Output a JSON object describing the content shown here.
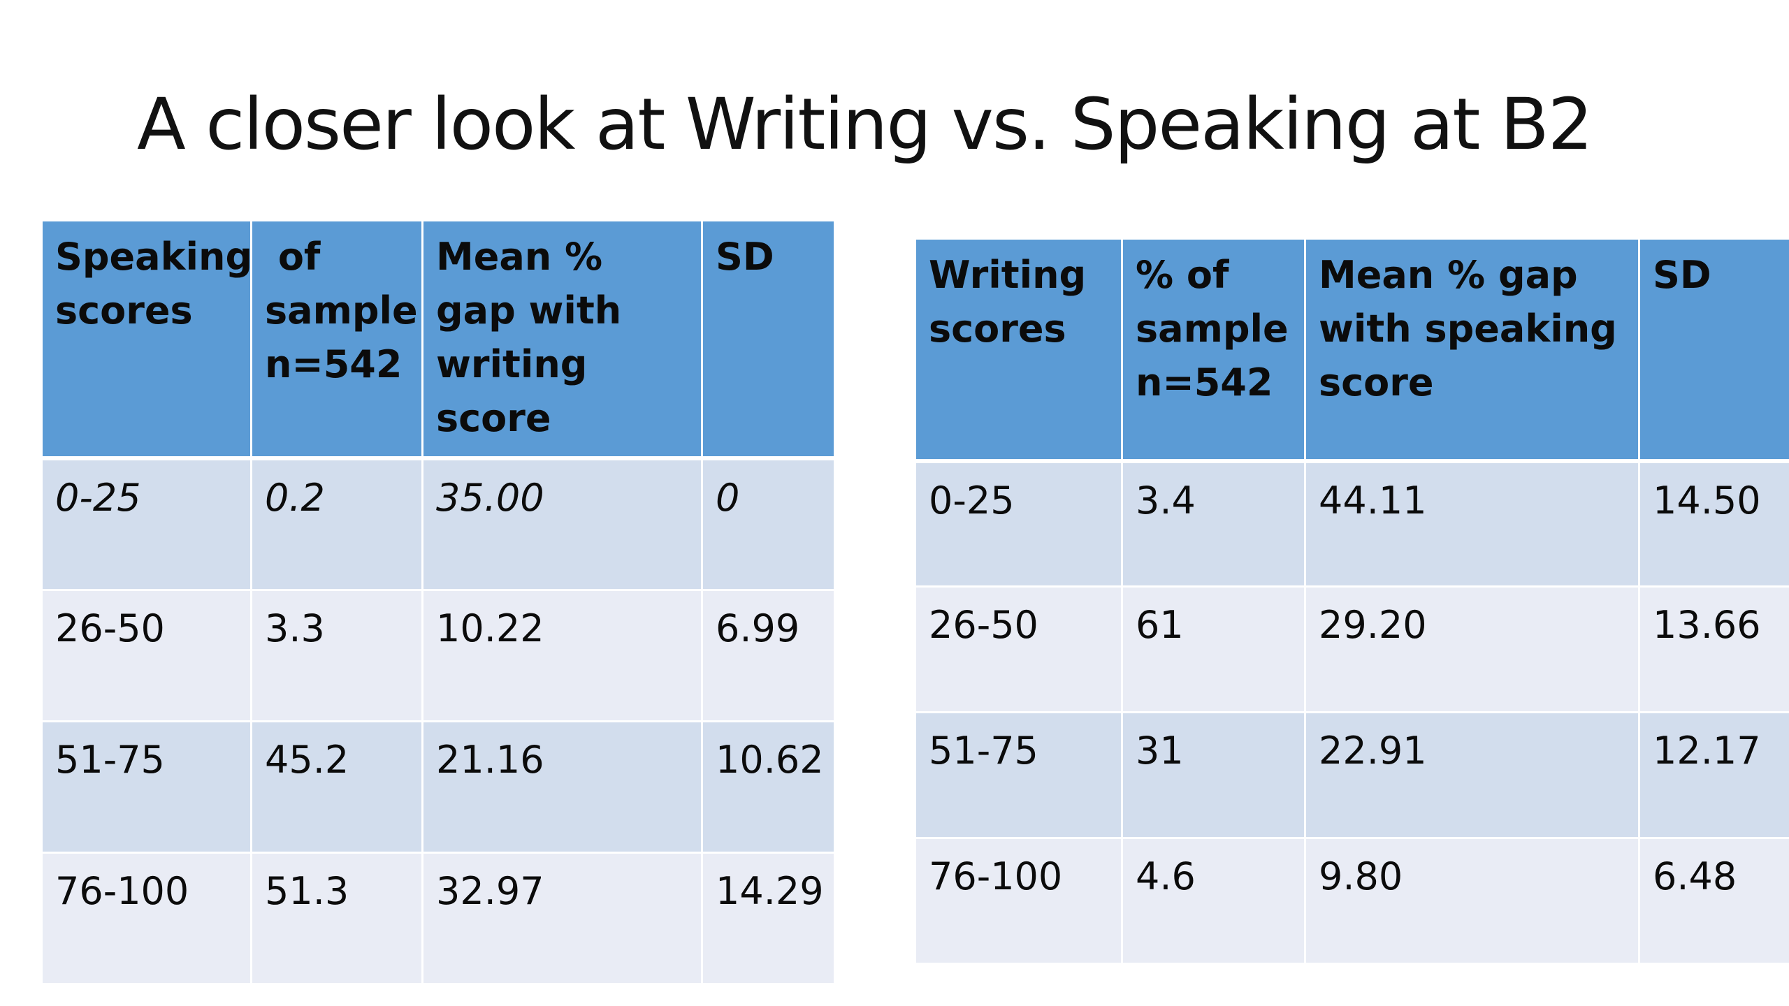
{
  "slide": {
    "title": "A closer look at Writing vs. Speaking at B2"
  },
  "speaking_table": {
    "headers": [
      "Speaking scores",
      " of sample n=542",
      "Mean % gap with writing score",
      "SD"
    ],
    "rows": [
      [
        "0-25",
        "0.2",
        "35.00",
        "0"
      ],
      [
        "26-50",
        "3.3",
        "10.22",
        "6.99"
      ],
      [
        "51-75",
        "45.2",
        "21.16",
        "10.62"
      ],
      [
        "76-100",
        "51.3",
        "32.97",
        "14.29"
      ]
    ]
  },
  "writing_table": {
    "headers": [
      "Writing scores",
      "% of sample n=542",
      "Mean % gap with speaking score",
      "SD"
    ],
    "rows": [
      [
        "0-25",
        "3.4",
        "44.11",
        "14.50"
      ],
      [
        "26-50",
        "61",
        "29.20",
        "13.66"
      ],
      [
        "51-75",
        "31",
        "22.91",
        "12.17"
      ],
      [
        "76-100",
        "4.6",
        "9.80",
        "6.48"
      ]
    ]
  },
  "colors": {
    "header_fill": "#5b9bd5",
    "row_band_dark": "#d2dded",
    "row_band_light": "#e9ecf5",
    "background": "#ffffff"
  }
}
